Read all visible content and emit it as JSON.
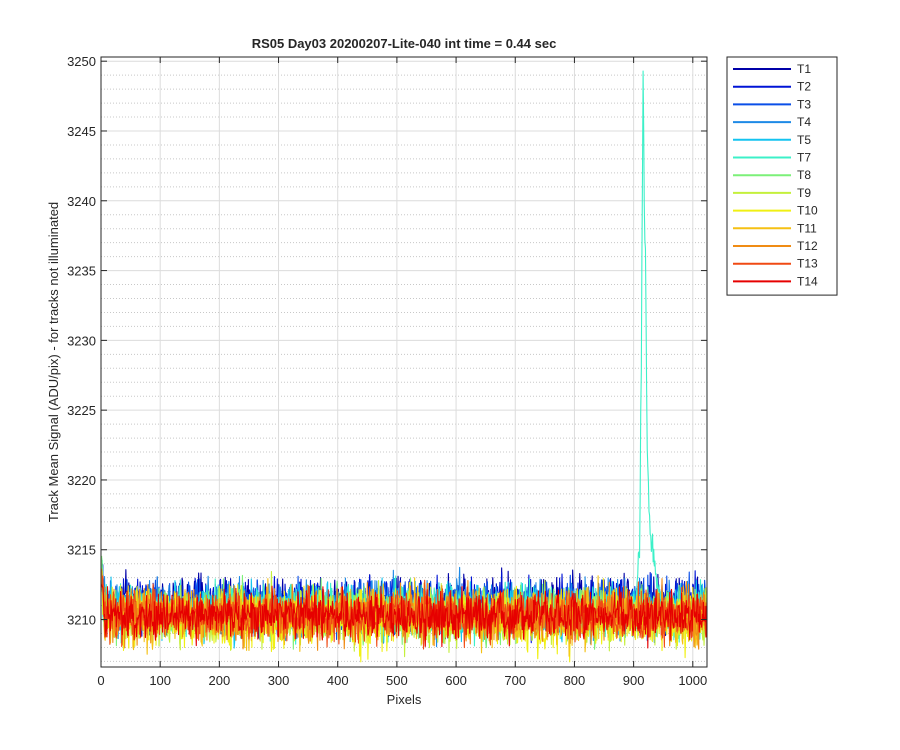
{
  "chart_data": {
    "type": "line",
    "title": "RS05 Day03 20200207-Lite-040 int time = 0.44 sec",
    "xlabel": "Pixels",
    "ylabel": "Track Mean Signal (ADU/pix) - for tracks not illuminated",
    "xlim": [
      0,
      1024
    ],
    "ylim": [
      3206.6,
      3250.3
    ],
    "xticks": [
      0,
      100,
      200,
      300,
      400,
      500,
      600,
      700,
      800,
      900,
      1000
    ],
    "yticks": [
      3210,
      3215,
      3220,
      3225,
      3230,
      3235,
      3240,
      3245,
      3250
    ],
    "grid": true,
    "minor_grid_y": true,
    "legend_position": "outside-top-right",
    "series": [
      {
        "name": "T1",
        "color": "#0000a8",
        "mean": 3211.2,
        "std": 0.9
      },
      {
        "name": "T2",
        "color": "#0014d6",
        "mean": 3211.0,
        "std": 0.9
      },
      {
        "name": "T3",
        "color": "#0a4fe8",
        "mean": 3210.9,
        "std": 0.9
      },
      {
        "name": "T4",
        "color": "#1e8ae6",
        "mean": 3210.8,
        "std": 0.9
      },
      {
        "name": "T5",
        "color": "#14c4f0",
        "mean": 3210.7,
        "std": 0.9
      },
      {
        "name": "T7",
        "color": "#3cf0c8",
        "mean": 3210.6,
        "std": 0.9,
        "peak": {
          "x": [
            905,
            910,
            913,
            916,
            918,
            920,
            923,
            926,
            930,
            935,
            940,
            945
          ],
          "y": [
            3212,
            3215,
            3228,
            3250,
            3240,
            3236,
            3222,
            3218,
            3215.5,
            3214,
            3212.5,
            3211.5
          ]
        }
      },
      {
        "name": "T8",
        "color": "#7cf078",
        "mean": 3210.4,
        "std": 0.9
      },
      {
        "name": "T9",
        "color": "#c4f03c",
        "mean": 3210.2,
        "std": 0.95
      },
      {
        "name": "T10",
        "color": "#f0f014",
        "mean": 3210.0,
        "std": 1.0
      },
      {
        "name": "T11",
        "color": "#f5c014",
        "mean": 3210.2,
        "std": 0.95
      },
      {
        "name": "T12",
        "color": "#f08c14",
        "mean": 3210.3,
        "std": 0.9
      },
      {
        "name": "T13",
        "color": "#f04a14",
        "mean": 3210.3,
        "std": 0.9
      },
      {
        "name": "T14",
        "color": "#e60000",
        "mean": 3210.3,
        "std": 0.85
      }
    ]
  }
}
